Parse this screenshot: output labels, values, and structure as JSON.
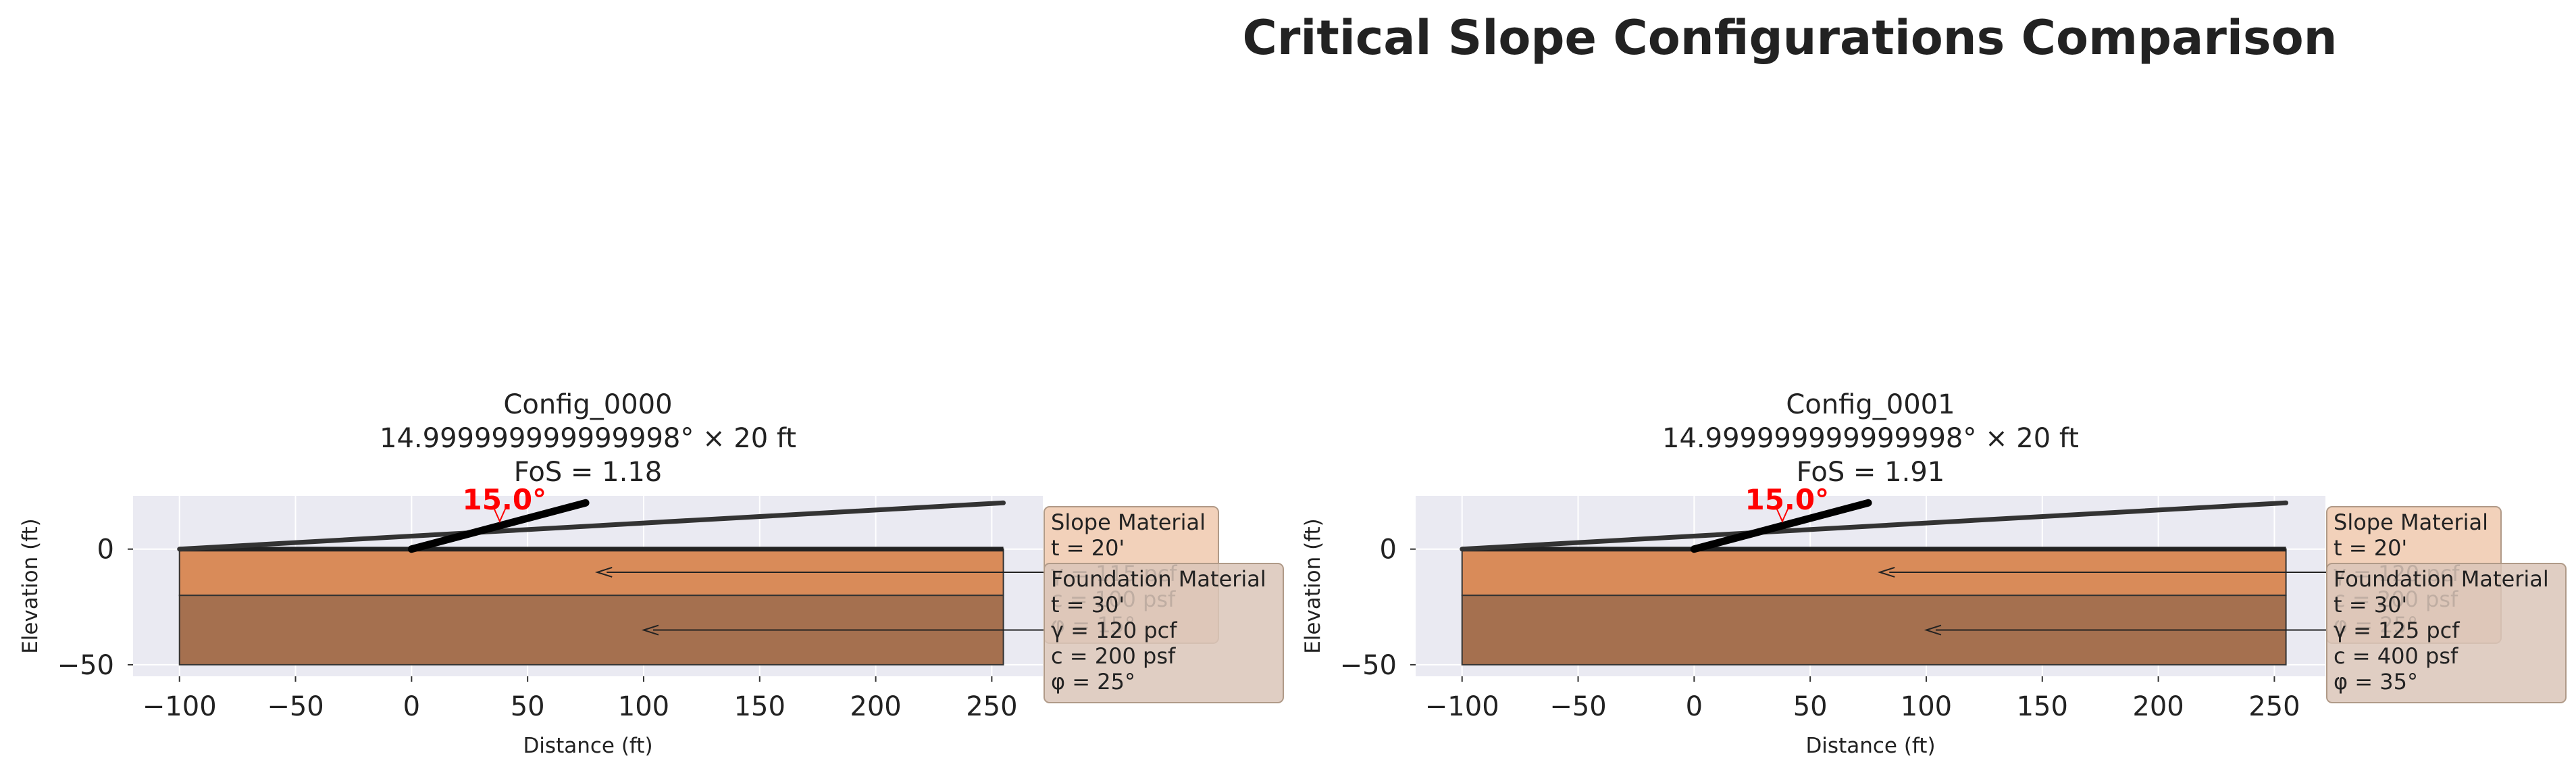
{
  "figure_title": "Critical Slope Configurations Comparison",
  "chart_data": [
    {
      "type": "line",
      "title_lines": [
        "Config_0000",
        "14.999999999999998° × 20 ft",
        "FoS = 1.18"
      ],
      "xlabel": "Distance (ft)",
      "ylabel": "Elevation (ft)",
      "xlim": [
        -120,
        272
      ],
      "ylim": [
        -55,
        23
      ],
      "xticks": [
        -100,
        -50,
        0,
        50,
        100,
        150,
        200,
        250
      ],
      "xtick_labels": [
        "−100",
        "−50",
        "0",
        "50",
        "100",
        "150",
        "200",
        "250"
      ],
      "yticks": [
        0,
        -50
      ],
      "ytick_labels": [
        "0",
        "−50"
      ],
      "grid": true,
      "layers": [
        {
          "name": "Slope Material",
          "y_top": 0,
          "y_bottom": -20,
          "x_start": -100,
          "x_end": 255,
          "color": "#d98b59"
        },
        {
          "name": "Foundation Material",
          "y_top": -20,
          "y_bottom": -50,
          "x_start": -100,
          "x_end": 255,
          "color": "#a5704f"
        }
      ],
      "ground_line": {
        "x": [
          -100,
          255
        ],
        "y": [
          0,
          0
        ]
      },
      "slope_face": {
        "x": [
          0,
          75
        ],
        "y": [
          0,
          20
        ]
      },
      "upper_line": {
        "x": [
          -100,
          255
        ],
        "y": [
          0,
          20
        ]
      },
      "angle_label": "15.0°",
      "angle_anchor": [
        38,
        12
      ],
      "angle_label_pos": [
        40,
        23
      ],
      "annotations": [
        {
          "lines": [
            "Slope Material",
            "t = 20'",
            "γ = 115 pcf",
            "c = 100 psf",
            "φ = 15°"
          ],
          "arrow_to": [
            80,
            -10
          ],
          "box_color": "#f0c9ae"
        },
        {
          "lines": [
            "Foundation Material",
            "t = 30'",
            "γ = 120 pcf",
            "c = 200 psf",
            "φ = 25°"
          ],
          "arrow_to": [
            100,
            -35
          ],
          "box_color": "#dbc6b8"
        }
      ]
    },
    {
      "type": "line",
      "title_lines": [
        "Config_0001",
        "14.999999999999998° × 20 ft",
        "FoS = 1.91"
      ],
      "xlabel": "Distance (ft)",
      "ylabel": "Elevation (ft)",
      "xlim": [
        -120,
        272
      ],
      "ylim": [
        -55,
        23
      ],
      "xticks": [
        -100,
        -50,
        0,
        50,
        100,
        150,
        200,
        250
      ],
      "xtick_labels": [
        "−100",
        "−50",
        "0",
        "50",
        "100",
        "150",
        "200",
        "250"
      ],
      "yticks": [
        0,
        -50
      ],
      "ytick_labels": [
        "0",
        "−50"
      ],
      "grid": true,
      "layers": [
        {
          "name": "Slope Material",
          "y_top": 0,
          "y_bottom": -20,
          "x_start": -100,
          "x_end": 255,
          "color": "#d98b59"
        },
        {
          "name": "Foundation Material",
          "y_top": -20,
          "y_bottom": -50,
          "x_start": -100,
          "x_end": 255,
          "color": "#a5704f"
        }
      ],
      "ground_line": {
        "x": [
          -100,
          255
        ],
        "y": [
          0,
          0
        ]
      },
      "slope_face": {
        "x": [
          0,
          75
        ],
        "y": [
          0,
          20
        ]
      },
      "upper_line": {
        "x": [
          -100,
          255
        ],
        "y": [
          0,
          20
        ]
      },
      "angle_label": "15.0°",
      "angle_anchor": [
        38,
        12
      ],
      "angle_label_pos": [
        40,
        23
      ],
      "annotations": [
        {
          "lines": [
            "Slope Material",
            "t = 20'",
            "γ = 120 pcf",
            "c = 200 psf",
            "φ = 25°"
          ],
          "arrow_to": [
            80,
            -10
          ],
          "box_color": "#f0c9ae"
        },
        {
          "lines": [
            "Foundation Material",
            "t = 30'",
            "γ = 125 pcf",
            "c = 400 psf",
            "φ = 35°"
          ],
          "arrow_to": [
            100,
            -35
          ],
          "box_color": "#dbc6b8"
        }
      ]
    }
  ]
}
